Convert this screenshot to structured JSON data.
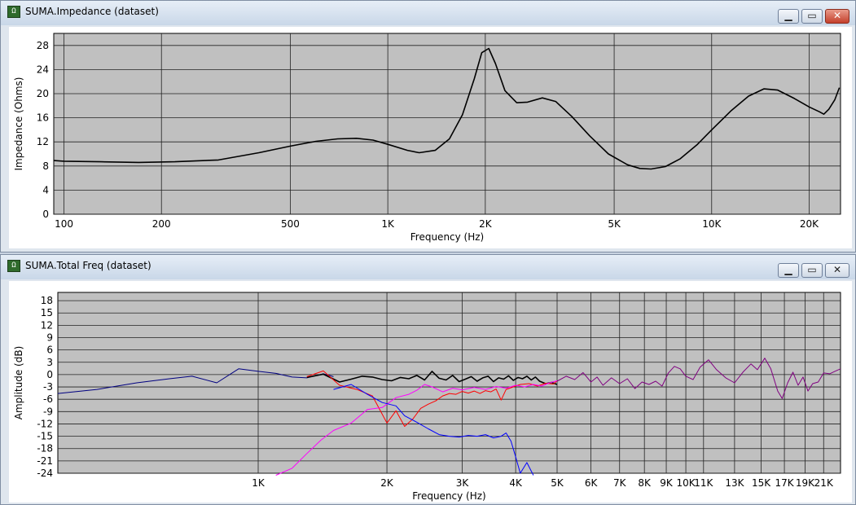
{
  "colors": {
    "plot_bg": "#c0c0c0",
    "grid": "#222222",
    "black_trace": "#000000",
    "red_trace": "#ff0000",
    "blue_trace": "#0000ff",
    "magenta_trace": "#ff00ff",
    "navy_trace": "#000080",
    "purple_trace": "#800080"
  },
  "impedance_window": {
    "title": "SUMA.Impedance (dataset)",
    "icons": [
      "app-icon",
      "minimize-icon",
      "maximize-icon",
      "close-icon"
    ]
  },
  "freq_window": {
    "title": "SUMA.Total Freq (dataset)",
    "icons": [
      "app-icon",
      "minimize-icon",
      "maximize-icon",
      "close-icon"
    ]
  },
  "chart_data": [
    {
      "type": "line",
      "xlabel": "Frequency (Hz)",
      "ylabel": "Impedance (Ohms)",
      "x_scale": "log",
      "xlim": [
        93,
        25000
      ],
      "ylim": [
        0,
        30
      ],
      "x_ticks": [
        100,
        200,
        500,
        1000,
        2000,
        5000,
        10000,
        20000
      ],
      "x_tick_labels": [
        "100",
        "200",
        "500",
        "1K",
        "2K",
        "5K",
        "10K",
        "20K"
      ],
      "y_ticks": [
        0,
        4,
        8,
        12,
        16,
        20,
        24,
        28
      ],
      "y_tick_labels": [
        "0",
        "4",
        "8",
        "12",
        "16",
        "20",
        "24",
        "28"
      ],
      "grid": true,
      "series": [
        {
          "color": "#000000",
          "points": [
            [
              93,
              8.9
            ],
            [
              100,
              8.8
            ],
            [
              130,
              8.7
            ],
            [
              170,
              8.6
            ],
            [
              220,
              8.7
            ],
            [
              300,
              9.0
            ],
            [
              400,
              10.2
            ],
            [
              500,
              11.3
            ],
            [
              600,
              12.1
            ],
            [
              700,
              12.5
            ],
            [
              800,
              12.6
            ],
            [
              900,
              12.3
            ],
            [
              1000,
              11.6
            ],
            [
              1150,
              10.6
            ],
            [
              1250,
              10.2
            ],
            [
              1400,
              10.6
            ],
            [
              1550,
              12.5
            ],
            [
              1700,
              16.5
            ],
            [
              1850,
              22.5
            ],
            [
              1950,
              26.8
            ],
            [
              2050,
              27.5
            ],
            [
              2150,
              25.0
            ],
            [
              2300,
              20.5
            ],
            [
              2500,
              18.5
            ],
            [
              2700,
              18.6
            ],
            [
              3000,
              19.3
            ],
            [
              3300,
              18.7
            ],
            [
              3700,
              16.2
            ],
            [
              4200,
              13.0
            ],
            [
              4800,
              10.0
            ],
            [
              5500,
              8.2
            ],
            [
              6000,
              7.6
            ],
            [
              6500,
              7.5
            ],
            [
              7200,
              7.9
            ],
            [
              8000,
              9.2
            ],
            [
              9000,
              11.5
            ],
            [
              10000,
              14.0
            ],
            [
              11500,
              17.2
            ],
            [
              13000,
              19.6
            ],
            [
              14500,
              20.8
            ],
            [
              16000,
              20.6
            ],
            [
              18000,
              19.2
            ],
            [
              20000,
              17.8
            ],
            [
              21500,
              17.0
            ],
            [
              22200,
              16.6
            ],
            [
              23000,
              17.4
            ],
            [
              24000,
              19.0
            ],
            [
              24800,
              21.0
            ]
          ]
        }
      ]
    },
    {
      "type": "line",
      "xlabel": "Frequency (Hz)",
      "ylabel": "Amplitude (dB)",
      "x_scale": "log",
      "xlim": [
        340,
        23000
      ],
      "ylim": [
        -24,
        20
      ],
      "x_ticks": [
        1000,
        2000,
        3000,
        4000,
        5000,
        6000,
        7000,
        8000,
        9000,
        10000,
        11000,
        13000,
        15000,
        17000,
        19000,
        21000
      ],
      "x_tick_labels": [
        "1K",
        "2K",
        "3K",
        "4K",
        "5K",
        "6K",
        "7K",
        "8K",
        "9K",
        "10K",
        "11K",
        "13K",
        "15K",
        "17K",
        "19K",
        "21K"
      ],
      "y_ticks": [
        18,
        15,
        12,
        9,
        6,
        3,
        0,
        -3,
        -6,
        -9,
        -12,
        -15,
        -18,
        -21,
        -24
      ],
      "y_tick_labels": [
        "18",
        "15",
        "12",
        "9",
        "6",
        "3",
        "0",
        "-3",
        "-6",
        "-9",
        "-12",
        "-15",
        "-18",
        "-21",
        "-24"
      ],
      "grid": true,
      "series": [
        {
          "color": "#000080",
          "points": [
            [
              340,
              -4.6
            ],
            [
              420,
              -3.6
            ],
            [
              520,
              -2.0
            ],
            [
              620,
              -1.0
            ],
            [
              700,
              -0.4
            ],
            [
              800,
              -2.0
            ],
            [
              900,
              1.4
            ],
            [
              1000,
              0.8
            ],
            [
              1100,
              0.3
            ],
            [
              1200,
              -0.6
            ],
            [
              1300,
              -0.8
            ],
            [
              1420,
              0.2
            ],
            [
              1500,
              -0.5
            ]
          ]
        },
        {
          "color": "#000000",
          "points": [
            [
              1300,
              -0.7
            ],
            [
              1420,
              0.1
            ],
            [
              1550,
              -1.8
            ],
            [
              1650,
              -1.1
            ],
            [
              1750,
              -0.4
            ],
            [
              1850,
              -0.6
            ],
            [
              1950,
              -1.2
            ],
            [
              2050,
              -1.5
            ],
            [
              2150,
              -0.7
            ],
            [
              2250,
              -1.0
            ],
            [
              2350,
              -0.2
            ],
            [
              2450,
              -1.3
            ],
            [
              2550,
              0.8
            ],
            [
              2650,
              -0.9
            ],
            [
              2750,
              -1.3
            ],
            [
              2850,
              -0.2
            ],
            [
              2950,
              -1.7
            ],
            [
              3050,
              -1.1
            ],
            [
              3150,
              -0.5
            ],
            [
              3250,
              -1.6
            ],
            [
              3350,
              -0.8
            ],
            [
              3450,
              -0.4
            ],
            [
              3550,
              -1.7
            ],
            [
              3650,
              -0.8
            ],
            [
              3750,
              -1.1
            ],
            [
              3850,
              -0.3
            ],
            [
              3950,
              -1.4
            ],
            [
              4050,
              -0.7
            ],
            [
              4150,
              -1.0
            ],
            [
              4250,
              -0.4
            ],
            [
              4350,
              -1.3
            ],
            [
              4450,
              -0.6
            ],
            [
              4550,
              -1.6
            ],
            [
              4700,
              -2.2
            ],
            [
              4850,
              -1.9
            ],
            [
              5000,
              -2.4
            ]
          ]
        },
        {
          "color": "#ff0000",
          "points": [
            [
              1300,
              -0.5
            ],
            [
              1420,
              0.9
            ],
            [
              1550,
              -2.6
            ],
            [
              1700,
              -3.6
            ],
            [
              1850,
              -5.2
            ],
            [
              2000,
              -11.8
            ],
            [
              2100,
              -8.8
            ],
            [
              2200,
              -12.6
            ],
            [
              2300,
              -10.8
            ],
            [
              2400,
              -8.2
            ],
            [
              2500,
              -7.2
            ],
            [
              2600,
              -6.4
            ],
            [
              2700,
              -5.2
            ],
            [
              2800,
              -4.6
            ],
            [
              2900,
              -4.8
            ],
            [
              3000,
              -4.1
            ],
            [
              3100,
              -4.5
            ],
            [
              3200,
              -4.0
            ],
            [
              3300,
              -4.6
            ],
            [
              3400,
              -3.9
            ],
            [
              3500,
              -4.2
            ],
            [
              3600,
              -3.5
            ],
            [
              3700,
              -6.2
            ],
            [
              3800,
              -3.6
            ],
            [
              3950,
              -3.0
            ],
            [
              4100,
              -2.4
            ],
            [
              4300,
              -2.2
            ],
            [
              4500,
              -2.8
            ],
            [
              4700,
              -2.1
            ],
            [
              4900,
              -2.3
            ],
            [
              5000,
              -1.5
            ]
          ]
        },
        {
          "color": "#ff00ff",
          "points": [
            [
              1100,
              -24.5
            ],
            [
              1200,
              -22.8
            ],
            [
              1300,
              -19.2
            ],
            [
              1400,
              -16.0
            ],
            [
              1500,
              -13.6
            ],
            [
              1650,
              -11.8
            ],
            [
              1800,
              -8.5
            ],
            [
              1950,
              -8.0
            ],
            [
              2100,
              -5.6
            ],
            [
              2250,
              -4.8
            ],
            [
              2350,
              -3.8
            ],
            [
              2450,
              -2.4
            ],
            [
              2550,
              -3.0
            ],
            [
              2700,
              -4.2
            ],
            [
              2850,
              -3.3
            ],
            [
              3000,
              -3.7
            ],
            [
              3200,
              -3.1
            ],
            [
              3400,
              -3.6
            ],
            [
              3600,
              -2.9
            ],
            [
              3800,
              -3.3
            ],
            [
              4000,
              -2.6
            ],
            [
              4200,
              -3.0
            ],
            [
              4400,
              -2.4
            ],
            [
              4600,
              -2.8
            ],
            [
              4800,
              -2.0
            ],
            [
              5000,
              -1.5
            ]
          ]
        },
        {
          "color": "#0000ff",
          "points": [
            [
              1500,
              -3.6
            ],
            [
              1650,
              -2.4
            ],
            [
              1800,
              -4.8
            ],
            [
              1950,
              -6.8
            ],
            [
              2100,
              -7.6
            ],
            [
              2200,
              -10.0
            ],
            [
              2350,
              -11.6
            ],
            [
              2500,
              -13.2
            ],
            [
              2650,
              -14.6
            ],
            [
              2800,
              -15.0
            ],
            [
              2950,
              -15.2
            ],
            [
              3100,
              -14.8
            ],
            [
              3250,
              -15.0
            ],
            [
              3400,
              -14.6
            ],
            [
              3550,
              -15.4
            ],
            [
              3700,
              -15.0
            ],
            [
              3800,
              -14.2
            ],
            [
              3900,
              -16.2
            ],
            [
              4000,
              -20.0
            ],
            [
              4100,
              -24.0
            ],
            [
              4250,
              -21.4
            ],
            [
              4400,
              -24.5
            ]
          ]
        },
        {
          "color": "#800080",
          "points": [
            [
              5000,
              -1.6
            ],
            [
              5250,
              -0.4
            ],
            [
              5500,
              -1.2
            ],
            [
              5750,
              0.5
            ],
            [
              6000,
              -1.8
            ],
            [
              6200,
              -0.6
            ],
            [
              6400,
              -2.6
            ],
            [
              6700,
              -0.8
            ],
            [
              7000,
              -2.2
            ],
            [
              7300,
              -1.0
            ],
            [
              7600,
              -3.4
            ],
            [
              7900,
              -1.8
            ],
            [
              8200,
              -2.4
            ],
            [
              8500,
              -1.6
            ],
            [
              8800,
              -2.8
            ],
            [
              9100,
              0.4
            ],
            [
              9400,
              2.0
            ],
            [
              9700,
              1.4
            ],
            [
              10000,
              -0.4
            ],
            [
              10400,
              -1.2
            ],
            [
              10800,
              1.8
            ],
            [
              11300,
              3.6
            ],
            [
              11800,
              1.2
            ],
            [
              12400,
              -0.8
            ],
            [
              13000,
              -2.0
            ],
            [
              13600,
              0.6
            ],
            [
              14200,
              2.6
            ],
            [
              14700,
              1.2
            ],
            [
              15300,
              4.0
            ],
            [
              15800,
              1.4
            ],
            [
              16400,
              -4.0
            ],
            [
              16800,
              -5.8
            ],
            [
              17300,
              -2.0
            ],
            [
              17800,
              0.6
            ],
            [
              18300,
              -2.6
            ],
            [
              18800,
              -0.6
            ],
            [
              19300,
              -4.0
            ],
            [
              19800,
              -2.2
            ],
            [
              20400,
              -1.8
            ],
            [
              21000,
              0.4
            ],
            [
              21700,
              0.2
            ],
            [
              22300,
              0.8
            ],
            [
              23000,
              1.4
            ]
          ]
        }
      ]
    }
  ]
}
